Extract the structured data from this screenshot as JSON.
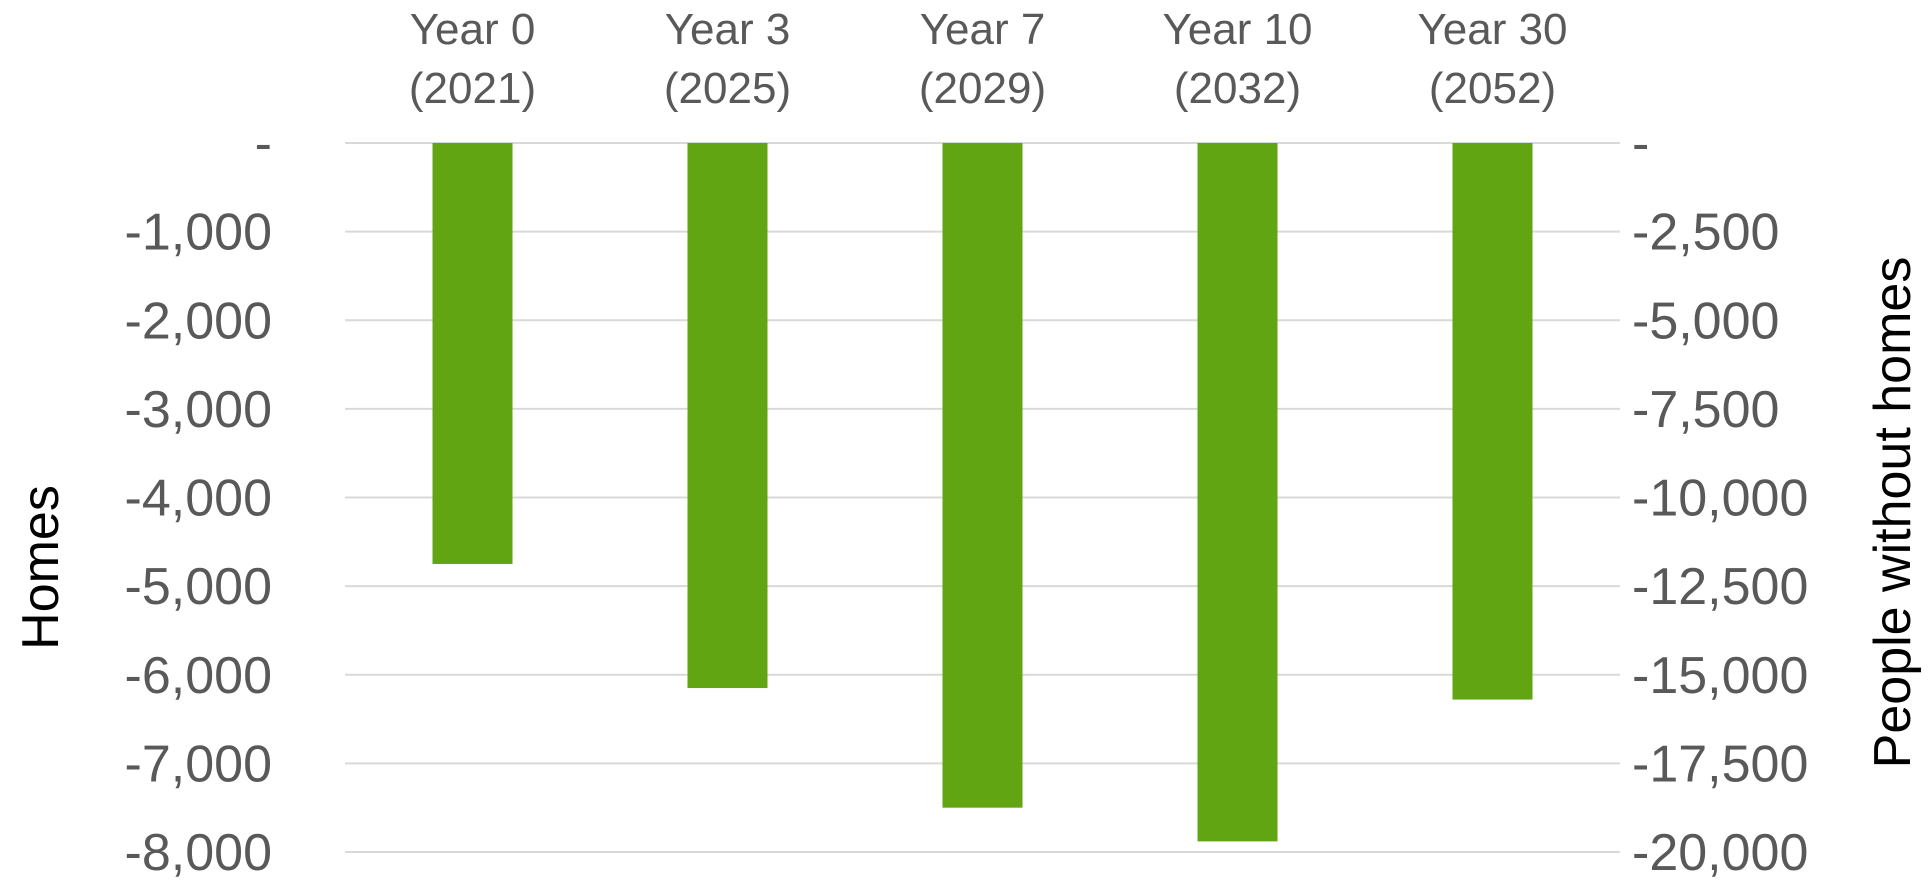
{
  "chart_data": {
    "type": "bar",
    "categories": [
      [
        "Year 0",
        "(2021)"
      ],
      [
        "Year 3",
        "(2025)"
      ],
      [
        "Year 7",
        "(2029)"
      ],
      [
        "Year 10",
        "(2032)"
      ],
      [
        "Year 30",
        "(2052)"
      ]
    ],
    "series": [
      {
        "values": [
          -4750,
          -6150,
          -7500,
          -7880,
          -6280
        ],
        "color": "#62a512"
      }
    ],
    "xlabel": "",
    "ylabel": "Homes",
    "y2label": "People without homes",
    "ylim": [
      -8000,
      0
    ],
    "yticks": [
      0,
      -1000,
      -2000,
      -3000,
      -4000,
      -5000,
      -6000,
      -7000,
      -8000
    ],
    "ytick_labels": [
      "-",
      "-1,000",
      "-2,000",
      "-3,000",
      "-4,000",
      "-5,000",
      "-6,000",
      "-7,000",
      "-8,000"
    ],
    "y2lim": [
      -20000,
      0
    ],
    "y2ticks": [
      0,
      -2500,
      -5000,
      -7500,
      -10000,
      -12500,
      -15000,
      -17500,
      -20000
    ],
    "y2tick_labels": [
      "-",
      "-2,500",
      "-5,000",
      "-7,500",
      "-10,000",
      "-12,500",
      "-15,000",
      "-17,500",
      "-20,000"
    ],
    "category_axis_position": "top",
    "grid": true,
    "legend": "none"
  }
}
